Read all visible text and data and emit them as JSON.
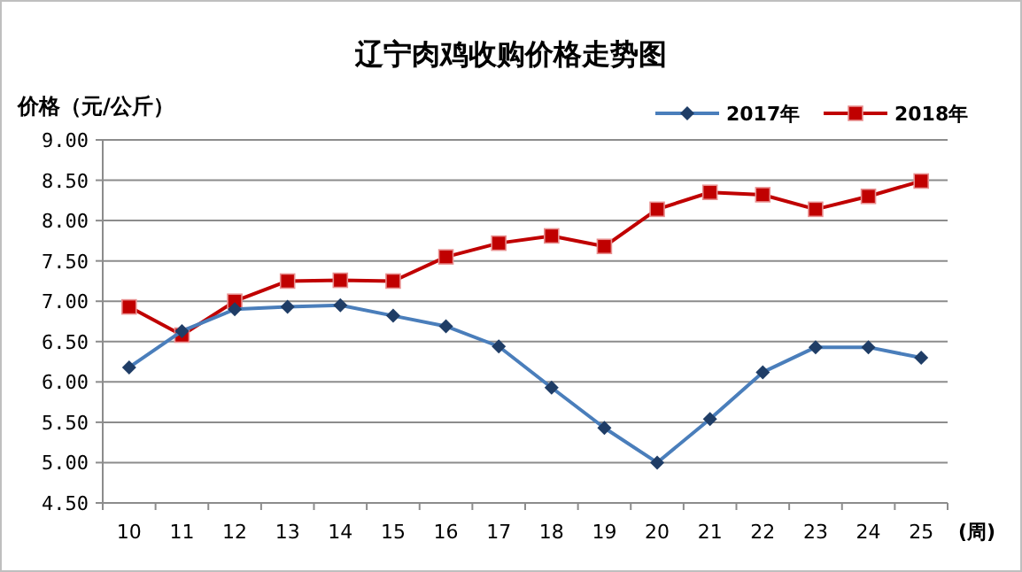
{
  "chart_data": {
    "type": "line",
    "title": "辽宁肉鸡收购价格走势图",
    "ylabel": "价格（元/公斤）",
    "xlabel": "(周)",
    "categories": [
      "10",
      "11",
      "12",
      "13",
      "14",
      "15",
      "16",
      "17",
      "18",
      "19",
      "20",
      "21",
      "22",
      "23",
      "24",
      "25"
    ],
    "series": [
      {
        "name": "2017年",
        "color": "#4a7ebb",
        "marker": "diamond",
        "values": [
          6.18,
          6.63,
          6.9,
          6.93,
          6.95,
          6.82,
          6.69,
          6.44,
          5.93,
          5.43,
          5.0,
          5.54,
          6.12,
          6.43,
          6.43,
          6.3
        ]
      },
      {
        "name": "2018年",
        "color": "#c00000",
        "marker": "square",
        "values": [
          6.93,
          6.58,
          7.0,
          7.25,
          7.26,
          7.25,
          7.55,
          7.72,
          7.81,
          7.68,
          8.14,
          8.35,
          8.32,
          8.14,
          8.3,
          8.49
        ]
      }
    ],
    "ylim": [
      4.5,
      9.0
    ],
    "yticks": [
      {
        "value": 4.5,
        "label": "4.50"
      },
      {
        "value": 5.0,
        "label": "5.00"
      },
      {
        "value": 5.5,
        "label": "5.50"
      },
      {
        "value": 6.0,
        "label": "6.00"
      },
      {
        "value": 6.5,
        "label": "6.50"
      },
      {
        "value": 7.0,
        "label": "7.00"
      },
      {
        "value": 7.5,
        "label": "7.50"
      },
      {
        "value": 8.0,
        "label": "8.00"
      },
      {
        "value": 8.5,
        "label": "8.50"
      },
      {
        "value": 9.0,
        "label": "9.00"
      }
    ],
    "grid": "y",
    "legend": "top right"
  }
}
